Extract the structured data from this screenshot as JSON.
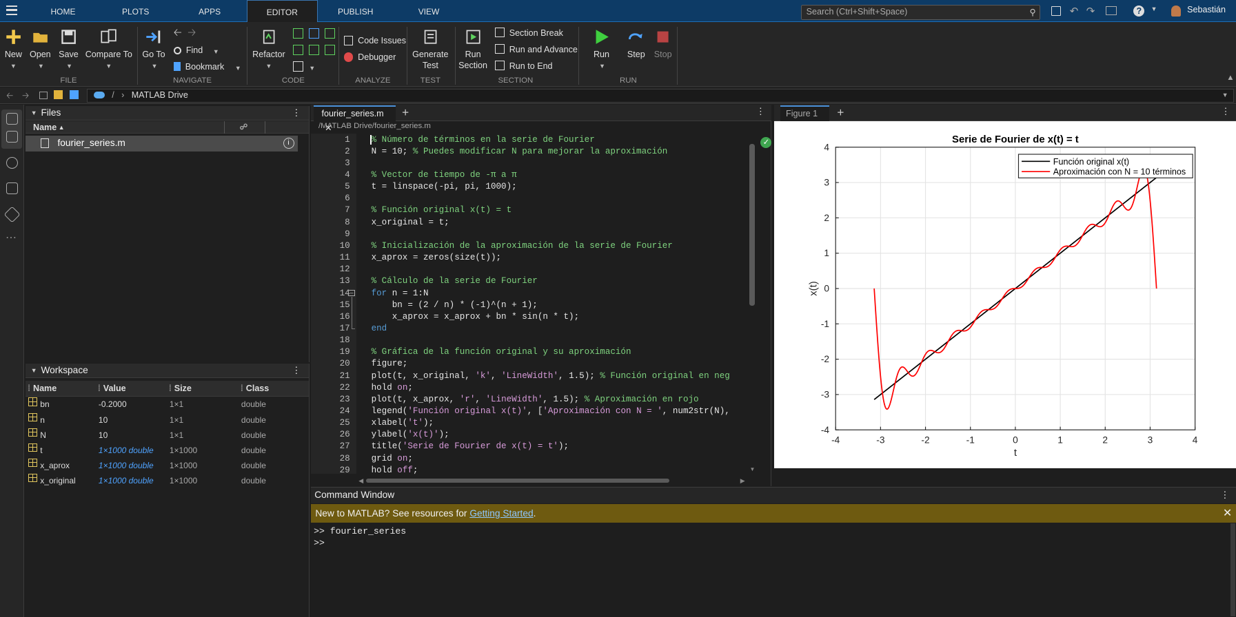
{
  "toolstrip": {
    "tabs": [
      "HOME",
      "PLOTS",
      "APPS",
      "EDITOR",
      "PUBLISH",
      "VIEW"
    ],
    "active_tab": "EDITOR",
    "search_placeholder": "Search (Ctrl+Shift+Space)",
    "user": "Sebastián"
  },
  "ribbon": {
    "file": {
      "new": "New",
      "open": "Open",
      "save": "Save",
      "compare": "Compare To",
      "group": "FILE"
    },
    "navigate": {
      "goto": "Go To",
      "find": "Find",
      "bookmark": "Bookmark",
      "group": "NAVIGATE"
    },
    "code": {
      "refactor": "Refactor",
      "group": "CODE"
    },
    "analyze": {
      "code_issues": "Code Issues",
      "debugger": "Debugger",
      "group": "ANALYZE"
    },
    "test": {
      "generate_line1": "Generate",
      "generate_line2": "Test",
      "group": "TEST"
    },
    "section": {
      "run_line1": "Run",
      "run_line2": "Section",
      "section_break": "Section Break",
      "run_advance": "Run and Advance",
      "run_end": "Run to End",
      "group": "SECTION"
    },
    "run": {
      "run": "Run",
      "step": "Step",
      "stop": "Stop",
      "group": "RUN"
    }
  },
  "address": {
    "root": "/",
    "folder": "MATLAB Drive"
  },
  "files_panel": {
    "title": "Files",
    "col_name": "Name",
    "file": "fourier_series.m"
  },
  "workspace": {
    "title": "Workspace",
    "cols": {
      "name": "Name",
      "value": "Value",
      "size": "Size",
      "class": "Class"
    },
    "rows": [
      {
        "name": "bn",
        "value": "-0.2000",
        "size": "1×1",
        "class": "double"
      },
      {
        "name": "n",
        "value": "10",
        "size": "1×1",
        "class": "double"
      },
      {
        "name": "N",
        "value": "10",
        "size": "1×1",
        "class": "double"
      },
      {
        "name": "t",
        "value": "1×1000 double",
        "size": "1×1000",
        "class": "double"
      },
      {
        "name": "x_aprox",
        "value": "1×1000 double",
        "size": "1×1000",
        "class": "double"
      },
      {
        "name": "x_original",
        "value": "1×1000 double",
        "size": "1×1000",
        "class": "double"
      }
    ]
  },
  "editor": {
    "tab": "fourier_series.m",
    "path": "/MATLAB Drive/fourier_series.m",
    "lines": [
      [
        [
          "cm",
          "% Número de términos en la serie de Fourier"
        ]
      ],
      [
        [
          "tx",
          "N = 10; "
        ],
        [
          "cm",
          "% Puedes modificar N para mejorar la aproximación"
        ]
      ],
      [],
      [
        [
          "cm",
          "% Vector de tiempo de -π a π"
        ]
      ],
      [
        [
          "tx",
          "t = linspace(-pi, pi, 1000);"
        ]
      ],
      [],
      [
        [
          "cm",
          "% Función original x(t) = t"
        ]
      ],
      [
        [
          "tx",
          "x_original = t;"
        ]
      ],
      [],
      [
        [
          "cm",
          "% Inicialización de la aproximación de la serie de Fourier"
        ]
      ],
      [
        [
          "tx",
          "x_aprox = zeros(size(t));"
        ]
      ],
      [],
      [
        [
          "cm",
          "% Cálculo de la serie de Fourier"
        ]
      ],
      [
        [
          "kw",
          "for"
        ],
        [
          "tx",
          " n = 1:N"
        ]
      ],
      [
        [
          "tx",
          "    bn = (2 / n) * (-1)^(n + 1);"
        ]
      ],
      [
        [
          "tx",
          "    x_aprox = x_aprox + bn * sin(n * t);"
        ]
      ],
      [
        [
          "kw",
          "end"
        ]
      ],
      [],
      [
        [
          "cm",
          "% Gráfica de la función original y su aproximación"
        ]
      ],
      [
        [
          "tx",
          "figure;"
        ]
      ],
      [
        [
          "tx",
          "plot(t, x_original, "
        ],
        [
          "st",
          "'k'"
        ],
        [
          "tx",
          ", "
        ],
        [
          "st",
          "'LineWidth'"
        ],
        [
          "tx",
          ", 1.5); "
        ],
        [
          "cm",
          "% Función original en neg"
        ]
      ],
      [
        [
          "tx",
          "hold "
        ],
        [
          "st",
          "on"
        ],
        [
          "tx",
          ";"
        ]
      ],
      [
        [
          "tx",
          "plot(t, x_aprox, "
        ],
        [
          "st",
          "'r'"
        ],
        [
          "tx",
          ", "
        ],
        [
          "st",
          "'LineWidth'"
        ],
        [
          "tx",
          ", 1.5); "
        ],
        [
          "cm",
          "% Aproximación en rojo"
        ]
      ],
      [
        [
          "tx",
          "legend("
        ],
        [
          "st",
          "'Función original x(t)'"
        ],
        [
          "tx",
          ", ["
        ],
        [
          "st",
          "'Aproximación con N = '"
        ],
        [
          "tx",
          ", num2str(N),"
        ]
      ],
      [
        [
          "tx",
          "xlabel("
        ],
        [
          "st",
          "'t'"
        ],
        [
          "tx",
          ");"
        ]
      ],
      [
        [
          "tx",
          "ylabel("
        ],
        [
          "st",
          "'x(t)'"
        ],
        [
          "tx",
          ");"
        ]
      ],
      [
        [
          "tx",
          "title("
        ],
        [
          "st",
          "'Serie de Fourier de x(t) = t'"
        ],
        [
          "tx",
          ");"
        ]
      ],
      [
        [
          "tx",
          "grid "
        ],
        [
          "st",
          "on"
        ],
        [
          "tx",
          ";"
        ]
      ],
      [
        [
          "tx",
          "hold "
        ],
        [
          "st",
          "off"
        ],
        [
          "tx",
          ";"
        ]
      ]
    ]
  },
  "figure": {
    "tab": "Figure 1"
  },
  "chart_data": {
    "type": "line",
    "title": "Serie de Fourier de x(t) = t",
    "xlabel": "t",
    "ylabel": "x(t)",
    "xlim": [
      -4,
      4
    ],
    "ylim": [
      -4,
      4
    ],
    "xticks": [
      -4,
      -3,
      -2,
      -1,
      0,
      1,
      2,
      3,
      4
    ],
    "yticks": [
      -4,
      -3,
      -2,
      -1,
      0,
      1,
      2,
      3,
      4
    ],
    "grid": true,
    "legend_position": "top-right",
    "series": [
      {
        "name": "Función original x(t)",
        "color": "#000000",
        "function": "x(t) = t",
        "x_range": [
          -3.1416,
          3.1416
        ]
      },
      {
        "name": "Aproximación con N = 10 términos",
        "color": "#ff0000",
        "function": "sum_{n=1}^{10} (2/n)(-1)^(n+1) sin(n t)",
        "N": 10,
        "x_range": [
          -3.1416,
          3.1416
        ]
      }
    ]
  },
  "command_window": {
    "title": "Command Window",
    "banner_text": "New to MATLAB? See resources for ",
    "banner_link": "Getting Started",
    "banner_end": ".",
    "lines": [
      ">> fourier_series",
      ">>"
    ]
  }
}
